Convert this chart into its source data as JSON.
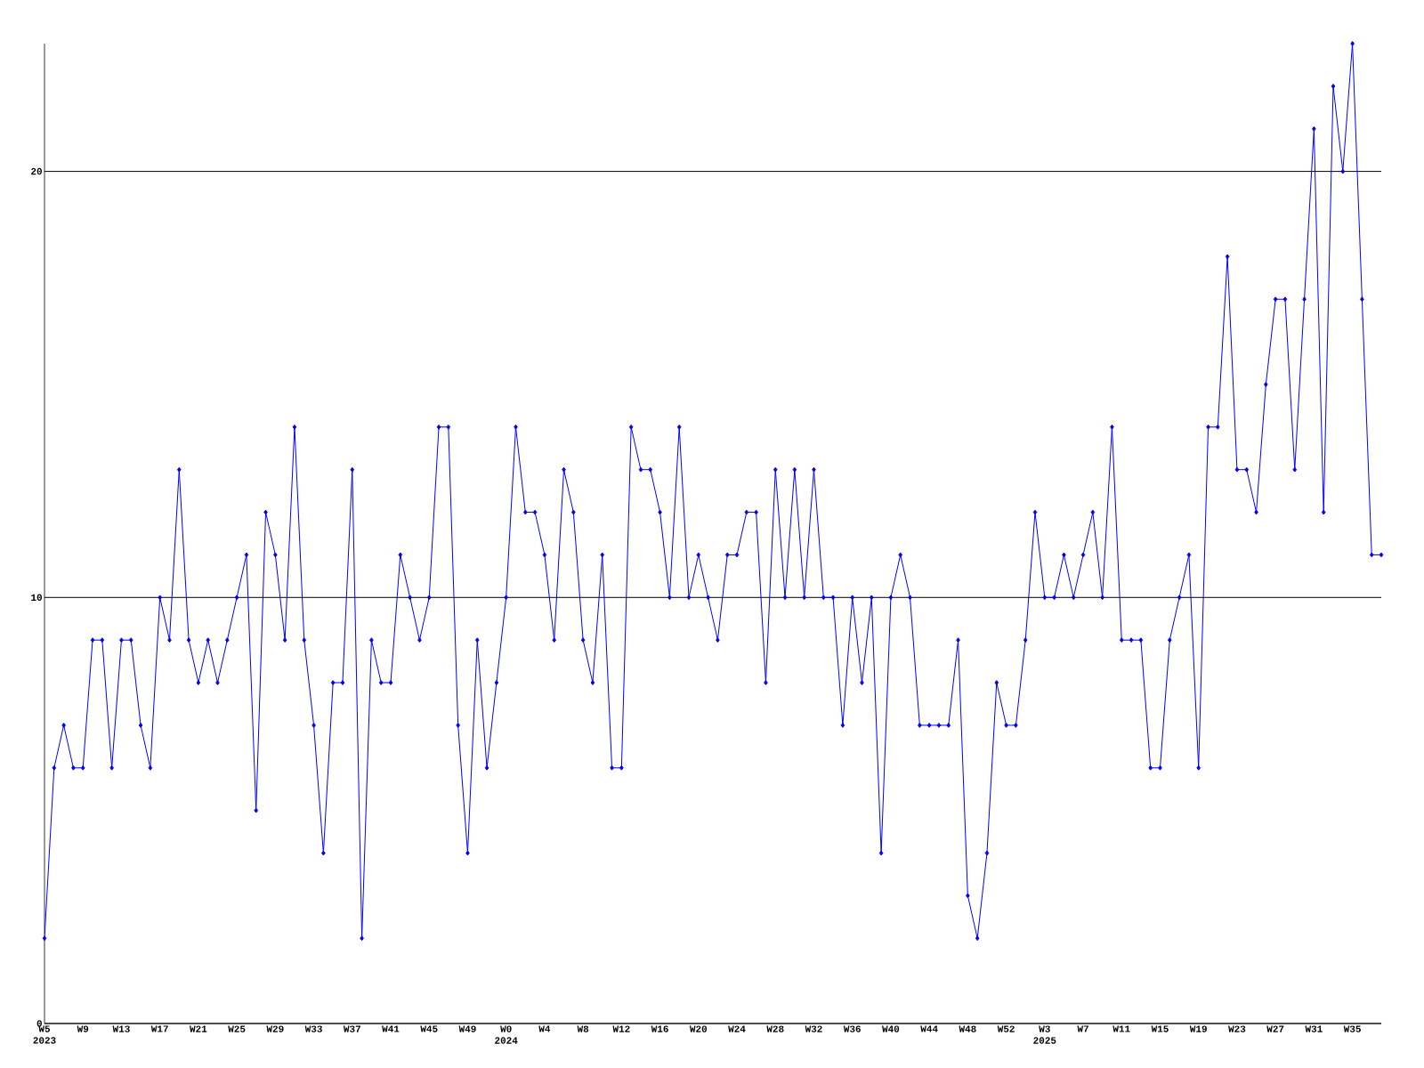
{
  "chart_data": {
    "type": "line",
    "categories": [
      "W5 2023",
      null,
      null,
      null,
      "W9",
      null,
      null,
      null,
      "W13",
      null,
      null,
      null,
      "W17",
      null,
      null,
      null,
      "W21",
      null,
      null,
      null,
      "W25",
      null,
      null,
      null,
      "W29",
      null,
      null,
      null,
      "W33",
      null,
      null,
      null,
      "W37",
      null,
      null,
      null,
      "W41",
      null,
      null,
      null,
      "W45",
      null,
      null,
      null,
      "W49",
      null,
      null,
      null,
      "W0 2024",
      null,
      null,
      null,
      "W4",
      null,
      null,
      null,
      "W8",
      null,
      null,
      null,
      "W12",
      null,
      null,
      null,
      "W16",
      null,
      null,
      null,
      "W20",
      null,
      null,
      null,
      "W24",
      null,
      null,
      null,
      "W28",
      null,
      null,
      null,
      "W32",
      null,
      null,
      null,
      "W36",
      null,
      null,
      null,
      "W40",
      null,
      null,
      null,
      "W44",
      null,
      null,
      null,
      "W48",
      null,
      null,
      null,
      "W52",
      null,
      null,
      null,
      "W3 2025",
      null,
      null,
      null,
      "W7",
      null,
      null,
      null,
      "W11",
      null,
      null,
      null,
      "W15",
      null,
      null,
      null,
      "W19",
      null,
      null,
      null,
      "W23",
      null,
      null,
      null,
      "W27",
      null,
      null,
      null,
      "W31",
      null,
      null,
      null,
      "W35",
      null,
      null,
      null
    ],
    "series": [
      {
        "color": "#0000ff",
        "values": [
          2,
          6,
          7,
          6,
          6,
          9,
          9,
          6,
          9,
          9,
          7,
          6,
          10,
          9,
          13,
          9,
          8,
          9,
          8,
          9,
          10,
          11,
          5,
          12,
          11,
          9,
          14,
          9,
          7,
          4,
          8,
          8,
          13,
          2,
          9,
          8,
          8,
          11,
          10,
          9,
          10,
          14,
          14,
          7,
          4,
          9,
          6,
          8,
          10,
          14,
          12,
          12,
          11,
          9,
          13,
          12,
          9,
          8,
          11,
          6,
          6,
          14,
          13,
          13,
          12,
          10,
          14,
          10,
          11,
          10,
          9,
          11,
          11,
          12,
          12,
          8,
          13,
          10,
          13,
          10,
          13,
          10,
          10,
          7,
          10,
          8,
          10,
          4,
          10,
          11,
          10,
          7,
          7,
          7,
          7,
          9,
          3,
          2,
          4,
          8,
          7,
          7,
          9,
          12,
          10,
          10,
          11,
          10,
          11,
          12,
          10,
          14,
          9,
          9,
          9,
          6,
          6,
          9,
          10,
          11,
          6,
          14,
          14,
          18,
          13,
          13,
          12,
          15,
          17,
          17,
          13,
          17,
          21,
          12,
          22,
          20,
          23,
          17,
          11,
          11
        ]
      }
    ],
    "ylim": [
      0,
      23
    ],
    "yticks": [
      0,
      10,
      20
    ],
    "grid": "y",
    "marker": "diamond",
    "line_style": "solid"
  }
}
